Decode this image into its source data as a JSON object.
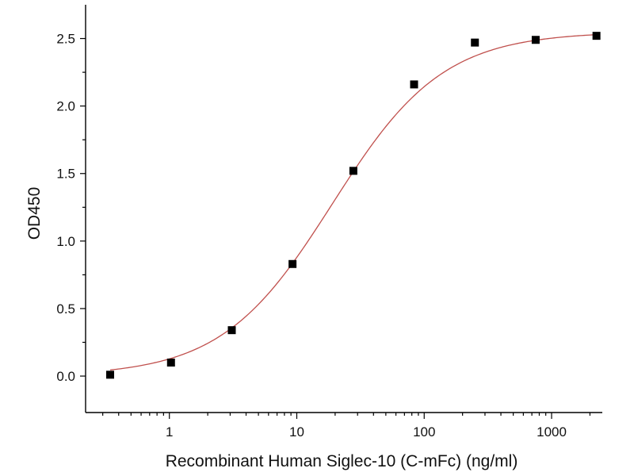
{
  "chart_data": {
    "type": "scatter",
    "title": "",
    "xlabel": "Recombinant Human Siglec-10 (C-mFc) (ng/ml)",
    "ylabel": "OD450",
    "x_scale": "log",
    "xlim": [
      0.22,
      2500
    ],
    "ylim": [
      -0.27,
      2.75
    ],
    "x_ticks": [
      1,
      10,
      100,
      1000
    ],
    "x_tick_labels": [
      "1",
      "10",
      "100",
      "1000"
    ],
    "y_ticks": [
      0.0,
      0.5,
      1.0,
      1.5,
      2.0,
      2.5
    ],
    "y_tick_labels": [
      "0.0",
      "0.5",
      "1.0",
      "1.5",
      "2.0",
      "2.5"
    ],
    "grid": false,
    "legend": "none",
    "series": [
      {
        "marker": "square",
        "color": "#000000",
        "x": [
          0.343,
          1.03,
          3.09,
          9.26,
          27.8,
          83.3,
          250,
          750,
          2250
        ],
        "y": [
          0.01,
          0.1,
          0.34,
          0.83,
          1.52,
          2.16,
          2.47,
          2.49,
          2.52
        ]
      }
    ],
    "fit_curve": {
      "model": "4PL",
      "color": "#c0504d",
      "bottom": 0.0,
      "top": 2.55,
      "ec50": 19,
      "hill": 1.0
    }
  }
}
